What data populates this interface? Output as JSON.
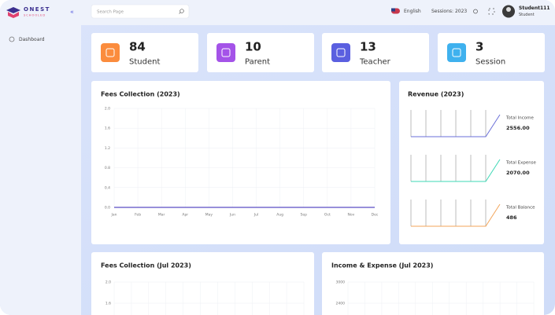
{
  "header": {
    "logo_top": "ONEST",
    "logo_bottom": "SCHOOLED",
    "search_placeholder": "Search Page",
    "language": "English",
    "session": "Sessions: 2023",
    "user_name": "Student111",
    "user_role": "Student"
  },
  "sidebar": {
    "items": [
      "Dashboard"
    ]
  },
  "cards": [
    {
      "value": 84,
      "label": "Student",
      "color": "#fb8c3d"
    },
    {
      "value": 10,
      "label": "Parent",
      "color": "#a453e8"
    },
    {
      "value": 13,
      "label": "Teacher",
      "color": "#5a5fe0"
    },
    {
      "value": 3,
      "label": "Session",
      "color": "#3fb1ee"
    }
  ],
  "fees_chart": {
    "type": "line",
    "title": "Fees Collection (2023)",
    "categories": [
      "Jan",
      "Feb",
      "Mar",
      "Apr",
      "May",
      "Jun",
      "Jul",
      "Aug",
      "Sep",
      "Oct",
      "Nov",
      "Dec"
    ],
    "series": [
      {
        "color": "#5b4ec4",
        "values": [
          0,
          0,
          0,
          0,
          0,
          0,
          0,
          0,
          0,
          0,
          0,
          0
        ]
      }
    ],
    "ylim": [
      0,
      2
    ],
    "yticks": [
      {
        "value": 0,
        "label": "0.0"
      },
      {
        "value": 0.4,
        "label": "0.4"
      },
      {
        "value": 0.8,
        "label": "0.8"
      },
      {
        "value": 1.2,
        "label": "1.2"
      },
      {
        "value": 1.6,
        "label": "1.6"
      },
      {
        "value": 2,
        "label": "2.0"
      }
    ],
    "grid": true
  },
  "revenue": {
    "title": "Revenue (2023)",
    "items": [
      {
        "label": "Total Income",
        "value": "2556.00",
        "color": "#6a6fd8"
      },
      {
        "label": "Total Expense",
        "value": "2070.00",
        "color": "#3ed8b5"
      },
      {
        "label": "Total Balance",
        "value": 486,
        "color": "#f3a55a"
      }
    ]
  },
  "fees_month_chart": {
    "title": "Fees Collection (Jul 2023)",
    "yticks": [
      {
        "value": 2,
        "label": "2.0"
      },
      {
        "value": 1.6,
        "label": "1.6"
      }
    ]
  },
  "income_expense_chart": {
    "title": "Income & Expense (Jul 2023)",
    "yticks": [
      3000,
      2400
    ]
  }
}
